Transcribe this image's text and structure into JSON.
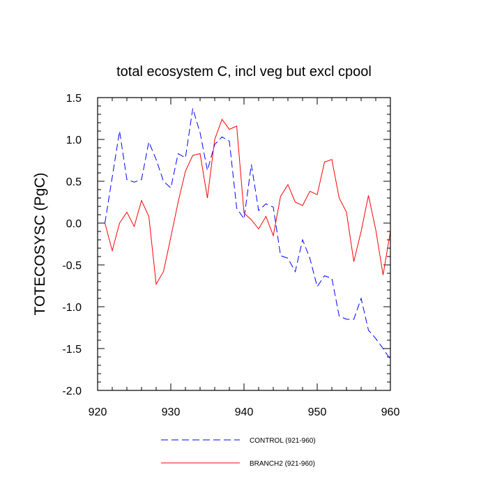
{
  "chart_data": {
    "type": "line",
    "title": "total ecosystem C, incl veg but excl cpool",
    "xlabel": "",
    "ylabel": "TOTECOSYSC  (PgC)",
    "xlim": [
      920,
      960
    ],
    "ylim": [
      -2.0,
      1.5
    ],
    "xticks": [
      920,
      930,
      940,
      950,
      960
    ],
    "xtick_labels": [
      "920",
      "930",
      "940",
      "950",
      "960"
    ],
    "yticks": [
      -2.0,
      -1.5,
      -1.0,
      -0.5,
      0.0,
      0.5,
      1.0,
      1.5
    ],
    "ytick_labels": [
      "-2.0",
      "-1.5",
      "-1.0",
      "-0.5",
      "0.0",
      "0.5",
      "1.0",
      "1.5"
    ],
    "grid": false,
    "legend_position": "bottom-center",
    "x": [
      921,
      922,
      923,
      924,
      925,
      926,
      927,
      928,
      929,
      930,
      931,
      932,
      933,
      934,
      935,
      936,
      937,
      938,
      939,
      940,
      941,
      942,
      943,
      944,
      945,
      946,
      947,
      948,
      949,
      950,
      951,
      952,
      953,
      954,
      955,
      956,
      957,
      958,
      959,
      960
    ],
    "series": [
      {
        "name": "CONTROL (921-960)",
        "color": "#0000ff",
        "dash": "dashed",
        "values": [
          0.0,
          0.55,
          1.1,
          0.52,
          0.49,
          0.52,
          0.97,
          0.76,
          0.5,
          0.42,
          0.83,
          0.78,
          1.37,
          1.08,
          0.63,
          0.94,
          1.03,
          0.98,
          0.18,
          0.05,
          0.7,
          0.15,
          0.23,
          0.19,
          -0.39,
          -0.42,
          -0.58,
          -0.2,
          -0.42,
          -0.76,
          -0.63,
          -0.66,
          -1.11,
          -1.15,
          -1.15,
          -0.9,
          -1.28,
          -1.38,
          -1.5,
          -1.63
        ]
      },
      {
        "name": "BRANCH2 (921-960)",
        "color": "#ff0000",
        "dash": "solid",
        "values": [
          0.0,
          -0.33,
          0.0,
          0.13,
          -0.04,
          0.27,
          0.08,
          -0.73,
          -0.58,
          -0.17,
          0.25,
          0.62,
          0.81,
          0.83,
          0.3,
          1.0,
          1.24,
          1.12,
          1.16,
          0.12,
          0.04,
          -0.07,
          0.08,
          -0.15,
          0.32,
          0.46,
          0.25,
          0.21,
          0.38,
          0.34,
          0.73,
          0.76,
          0.3,
          0.13,
          -0.46,
          -0.1,
          0.33,
          -0.08,
          -0.62,
          -0.1
        ]
      }
    ]
  }
}
